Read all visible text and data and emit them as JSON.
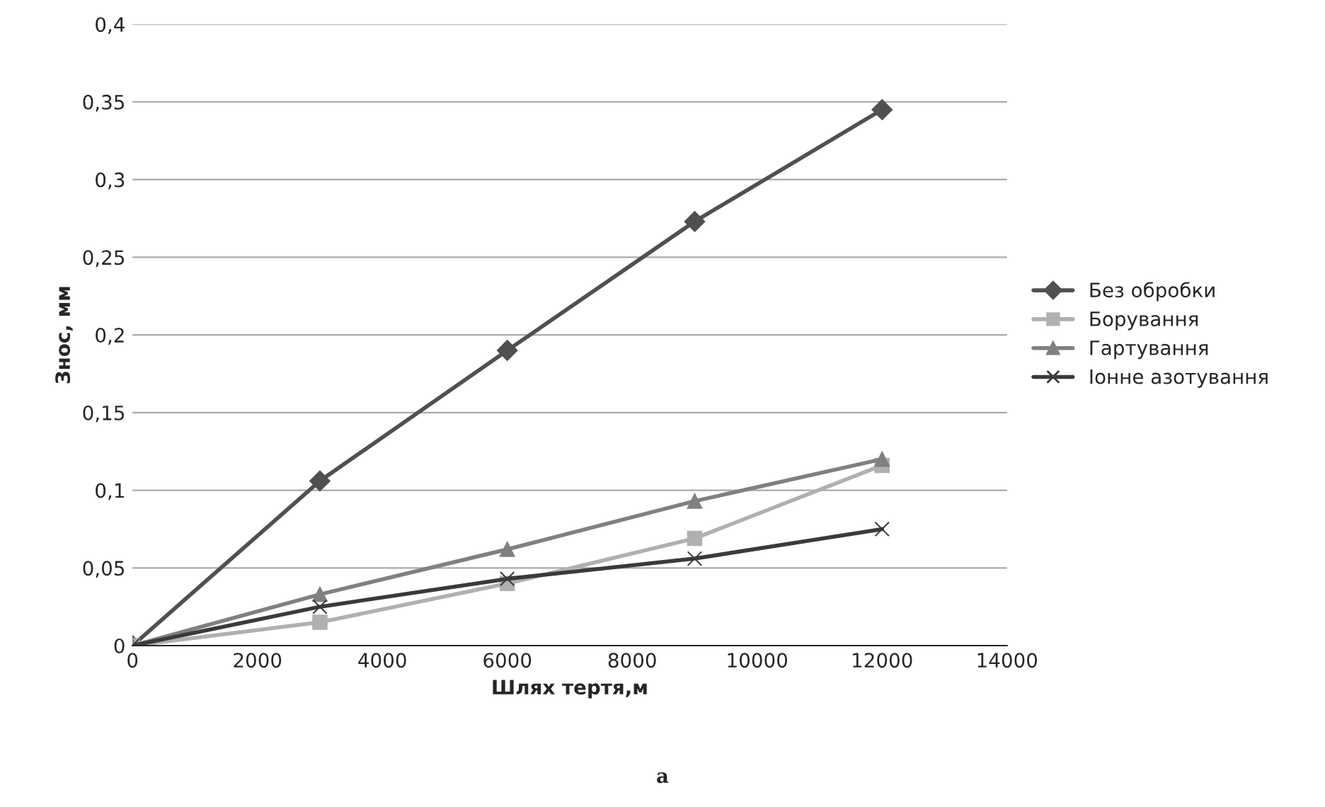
{
  "chart_data": {
    "type": "line",
    "xlabel": "Шлях тертя,м",
    "ylabel": "Знос, мм",
    "x": [
      0,
      3000,
      6000,
      9000,
      12000
    ],
    "series": [
      {
        "name": "Без обробки",
        "color": "#505050",
        "marker": "diamond",
        "values": [
          0,
          0.106,
          0.19,
          0.273,
          0.345
        ]
      },
      {
        "name": "Борування",
        "color": "#b0b0b0",
        "marker": "square",
        "values": [
          0,
          0.015,
          0.04,
          0.069,
          0.116
        ]
      },
      {
        "name": "Гартування",
        "color": "#808080",
        "marker": "triangle",
        "values": [
          0,
          0.033,
          0.062,
          0.093,
          0.12
        ]
      },
      {
        "name": "Іонне азотування",
        "color": "#3a3a3a",
        "marker": "cross",
        "values": [
          0,
          0.025,
          0.043,
          0.056,
          0.075
        ]
      }
    ],
    "xlim": [
      0,
      14000
    ],
    "xticks": [
      0,
      2000,
      4000,
      6000,
      8000,
      10000,
      12000,
      14000
    ],
    "ylim": [
      0,
      0.4
    ],
    "yticks": [
      {
        "value": 0,
        "label": "0"
      },
      {
        "value": 0.05,
        "label": "0,05"
      },
      {
        "value": 0.1,
        "label": "0,1"
      },
      {
        "value": 0.15,
        "label": "0,15"
      },
      {
        "value": 0.2,
        "label": "0,2"
      },
      {
        "value": 0.25,
        "label": "0,25"
      },
      {
        "value": 0.3,
        "label": "0,3"
      },
      {
        "value": 0.35,
        "label": "0,35"
      },
      {
        "value": 0.4,
        "label": "0,4"
      }
    ],
    "grid": "y",
    "legend": "right",
    "line_style": "solid",
    "annotations": [
      "а"
    ]
  }
}
